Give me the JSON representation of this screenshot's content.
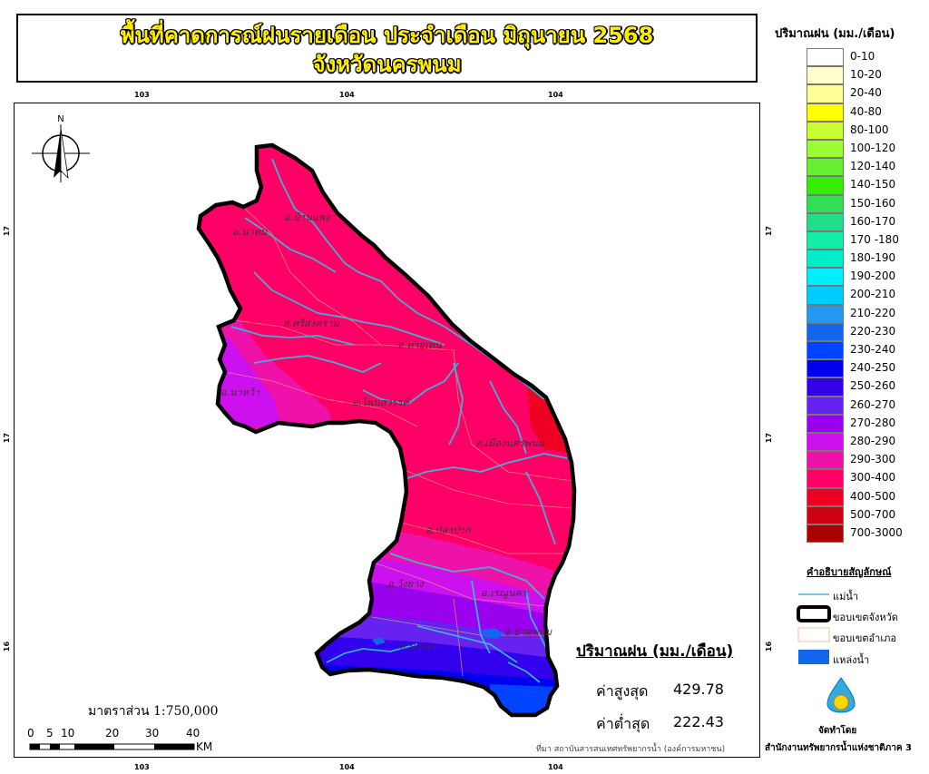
{
  "title": {
    "line1": "พื้นที่คาดการณ์ฝนรายเดือน ประจำเดือน มิถุนายน 2568",
    "line2": "จังหวัดนครพนม"
  },
  "grid_labels": {
    "top": [
      "103",
      "104",
      "104"
    ],
    "bottom": [
      "103",
      "104",
      "104"
    ],
    "left": [
      "17",
      "17",
      "16"
    ],
    "right": [
      "17",
      "17",
      "16"
    ]
  },
  "north_arrow": "N",
  "districts": [
    "อ.บ้านแพง",
    "อ.นาทม",
    "อ.ศรีสงคราม",
    "อ.ท่าอุเทน",
    "อ.นาหว้า",
    "อ.โพนสวรรค์",
    "อ.เมืองนครพนม",
    "อ.ปลาปาก",
    "อ.วังยาง",
    "อ.เรณูนคร",
    "อ.ธาตุพนม",
    "อ.นาแก"
  ],
  "legend": {
    "title": "ปริมาณฝน (มม./เดือน)",
    "classes": [
      {
        "label": "0-10",
        "color": "#ffffff"
      },
      {
        "label": "10-20",
        "color": "#ffffcc"
      },
      {
        "label": "20-40",
        "color": "#ffff99"
      },
      {
        "label": "40-80",
        "color": "#ffff00"
      },
      {
        "label": "80-100",
        "color": "#ccff33"
      },
      {
        "label": "100-120",
        "color": "#99ff33"
      },
      {
        "label": "120-140",
        "color": "#66ee33"
      },
      {
        "label": "140-150",
        "color": "#33ee00"
      },
      {
        "label": "150-160",
        "color": "#33dd55"
      },
      {
        "label": "160-170",
        "color": "#22dd88"
      },
      {
        "label": "170 -180",
        "color": "#11eeaa"
      },
      {
        "label": "180-190",
        "color": "#00eecc"
      },
      {
        "label": "190-200",
        "color": "#00eeff"
      },
      {
        "label": "200-210",
        "color": "#00ccff"
      },
      {
        "label": "210-220",
        "color": "#2299ee"
      },
      {
        "label": "220-230",
        "color": "#1166ee"
      },
      {
        "label": "230-240",
        "color": "#0044ff"
      },
      {
        "label": "240-250",
        "color": "#0000ee"
      },
      {
        "label": "250-260",
        "color": "#3300ee"
      },
      {
        "label": "260-270",
        "color": "#6622ee"
      },
      {
        "label": "270-280",
        "color": "#9900ee"
      },
      {
        "label": "280-290",
        "color": "#cc11ee"
      },
      {
        "label": "290-300",
        "color": "#ee11aa"
      },
      {
        "label": "300-400",
        "color": "#ff0066"
      },
      {
        "label": "400-500",
        "color": "#ee0022"
      },
      {
        "label": "500-700",
        "color": "#cc0011"
      },
      {
        "label": "700-3000",
        "color": "#aa0000"
      }
    ]
  },
  "symbols": {
    "title": "คำอธิบายสัญลักษณ์",
    "items": [
      {
        "label": "แม่น้ำ",
        "type": "river"
      },
      {
        "label": "ขอบเขตจังหวัด",
        "type": "province"
      },
      {
        "label": "ขอบเขตอำเภอ",
        "type": "district"
      },
      {
        "label": "แหล่งน้ำ",
        "type": "water"
      }
    ]
  },
  "stats": {
    "title": "ปริมาณฝน (มม./เดือน)",
    "max_label": "ค่าสูงสุด",
    "max_value": "429.78",
    "min_label": "ค่าต่ำสุด",
    "min_value": "222.43"
  },
  "scale": {
    "text": "มาตราส่วน 1:750,000",
    "ticks": [
      "0",
      "5",
      "10",
      "20",
      "30",
      "40"
    ],
    "unit": "KM"
  },
  "source": "ที่มา  สถาบันสารสนเทศทรัพยากรน้ำ (องค์การมหาชน)",
  "prepared_by": "จัดทำโดย",
  "organization": "สำนักงานทรัพยากรน้ำแห่งชาติภาค 3"
}
